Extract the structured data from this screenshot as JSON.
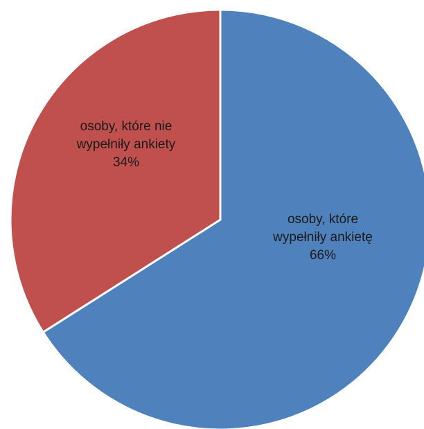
{
  "chart_data": {
    "type": "pie",
    "title": "",
    "slices": [
      {
        "label_lines": [
          "osoby, które",
          "wypełniły ankietę"
        ],
        "percent_label": "66%",
        "value": 66,
        "color": "#4f81bd"
      },
      {
        "label_lines": [
          "osoby, które nie",
          "wypełniły ankiety"
        ],
        "percent_label": "34%",
        "value": 34,
        "color": "#c0504d"
      }
    ],
    "start_angle": "12 o'clock",
    "direction": "clockwise",
    "data_labels": "inside",
    "legend": "none",
    "slice_border_color": "#ffffff"
  }
}
